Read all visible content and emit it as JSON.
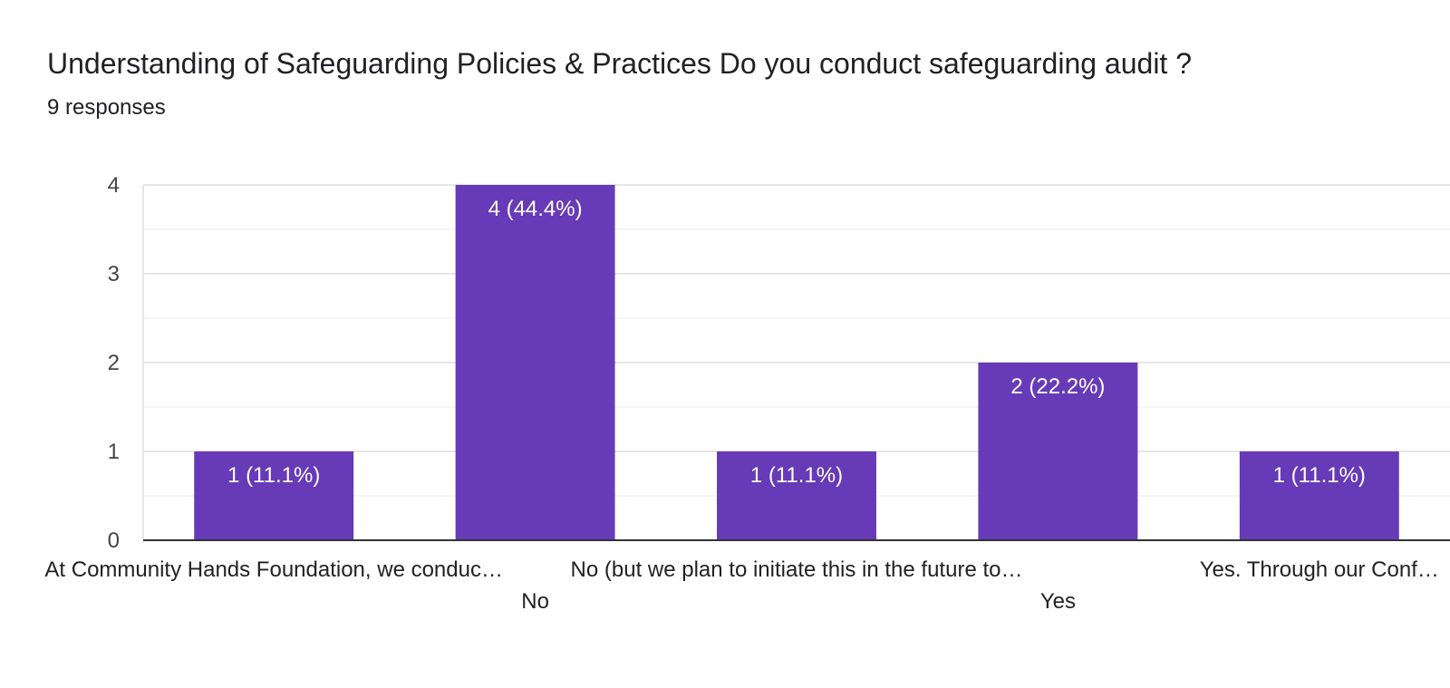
{
  "header": {
    "title": "Understanding of Safeguarding Policies & Practices Do you conduct safeguarding audit ?",
    "subtitle": "9 responses"
  },
  "colors": {
    "bar": "#673ab7",
    "grid_major": "#e6e6e6",
    "grid_minor": "#f2f2f2",
    "axis": "#333333"
  },
  "chart_data": {
    "type": "bar",
    "categories": [
      "At Community Hands Foundation, we conduc…",
      "No",
      "No (but we plan to initiate this in the future to…",
      "Yes",
      "Yes. Through our Conf…"
    ],
    "values": [
      1,
      4,
      1,
      2,
      1
    ],
    "data_labels": [
      "1 (11.1%)",
      "4 (44.4%)",
      "1 (11.1%)",
      "2 (22.2%)",
      "1 (11.1%)"
    ],
    "title": "Understanding of Safeguarding Policies & Practices Do you conduct safeguarding audit ?",
    "subtitle": "9 responses",
    "ylim": [
      0,
      4
    ],
    "yticks": [
      "0",
      "1",
      "2",
      "3",
      "4"
    ],
    "grid": true,
    "legend": "none"
  }
}
